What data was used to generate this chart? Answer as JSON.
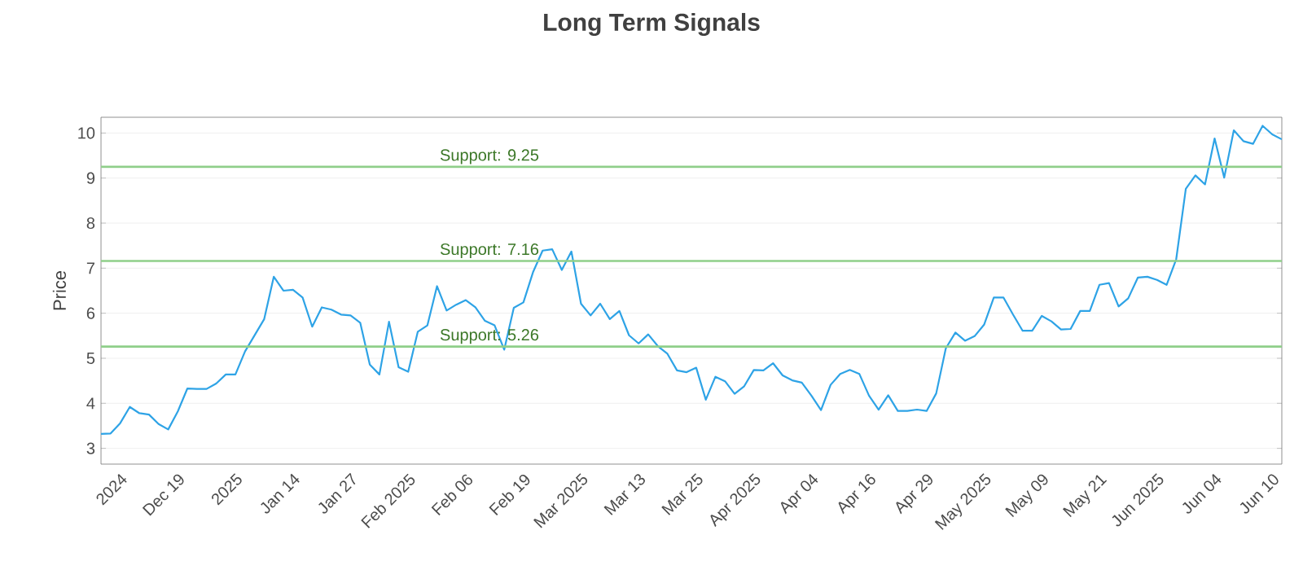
{
  "chart_data": {
    "type": "line",
    "title": "Long Term Signals",
    "ylabel": "Price",
    "categories": [
      null,
      null,
      "2024",
      null,
      null,
      null,
      null,
      null,
      "Dec 19",
      null,
      null,
      null,
      null,
      null,
      "2025",
      null,
      null,
      null,
      null,
      null,
      "Jan 14",
      null,
      null,
      null,
      null,
      null,
      "Jan 27",
      null,
      null,
      null,
      null,
      null,
      "Feb 2025",
      null,
      null,
      null,
      null,
      null,
      "Feb 06",
      null,
      null,
      null,
      null,
      null,
      "Feb 19",
      null,
      null,
      null,
      null,
      null,
      "Mar 2025",
      null,
      null,
      null,
      null,
      null,
      "Mar 13",
      null,
      null,
      null,
      null,
      null,
      "Mar 25",
      null,
      null,
      null,
      null,
      null,
      "Apr 2025",
      null,
      null,
      null,
      null,
      null,
      "Apr 04",
      null,
      null,
      null,
      null,
      null,
      "Apr 16",
      null,
      null,
      null,
      null,
      null,
      "Apr 29",
      null,
      null,
      null,
      null,
      null,
      "May 2025",
      null,
      null,
      null,
      null,
      null,
      "May 09",
      null,
      null,
      null,
      null,
      null,
      "May 21",
      null,
      null,
      null,
      null,
      null,
      "Jun 2025",
      null,
      null,
      null,
      null,
      null,
      "Jun 04",
      null,
      null,
      null,
      null,
      null,
      "Jun 10",
      null
    ],
    "series": [
      {
        "color": "#2ea3e6",
        "values": [
          3.32,
          3.33,
          3.56,
          3.92,
          3.78,
          3.75,
          3.54,
          3.42,
          3.82,
          4.33,
          4.32,
          4.32,
          4.44,
          4.64,
          4.64,
          5.15,
          5.51,
          5.87,
          6.81,
          6.5,
          6.52,
          6.35,
          5.7,
          6.13,
          6.08,
          5.97,
          5.95,
          5.79,
          4.86,
          4.64,
          5.81,
          4.8,
          4.7,
          5.59,
          5.73,
          6.6,
          6.06,
          6.19,
          6.29,
          6.13,
          5.83,
          5.73,
          5.19,
          6.12,
          6.24,
          6.91,
          7.39,
          7.42,
          6.96,
          7.37,
          6.21,
          5.95,
          6.21,
          5.87,
          6.05,
          5.51,
          5.33,
          5.53,
          5.27,
          5.1,
          4.73,
          4.69,
          4.79,
          4.08,
          4.59,
          4.49,
          4.21,
          4.38,
          4.74,
          4.73,
          4.89,
          4.62,
          4.51,
          4.46,
          4.17,
          3.85,
          4.41,
          4.65,
          4.74,
          4.65,
          4.17,
          3.86,
          4.18,
          3.83,
          3.83,
          3.86,
          3.83,
          4.22,
          5.22,
          5.57,
          5.39,
          5.49,
          5.75,
          6.35,
          6.35,
          5.97,
          5.61,
          5.61,
          5.94,
          5.82,
          5.64,
          5.65,
          6.05,
          6.05,
          6.63,
          6.67,
          6.15,
          6.33,
          6.79,
          6.81,
          6.74,
          6.63,
          7.2,
          8.76,
          9.06,
          8.86,
          9.88,
          9.01,
          10.06,
          9.82,
          9.76,
          10.16,
          9.97,
          9.86
        ]
      }
    ],
    "ylim": [
      2.65,
      10.35
    ],
    "yticks": [
      3,
      4,
      5,
      6,
      7,
      8,
      9,
      10
    ],
    "grid": "y",
    "marker": "none",
    "line_style": "solid",
    "ref_lines": [
      {
        "axis": "y",
        "value": 9.25,
        "label": "Support: 9.25",
        "color": "#8fcf8a"
      },
      {
        "axis": "y",
        "value": 7.16,
        "label": "Support: 7.16",
        "color": "#8fcf8a"
      },
      {
        "axis": "y",
        "value": 5.26,
        "label": "Support: 5.26",
        "color": "#8fcf8a"
      }
    ]
  }
}
